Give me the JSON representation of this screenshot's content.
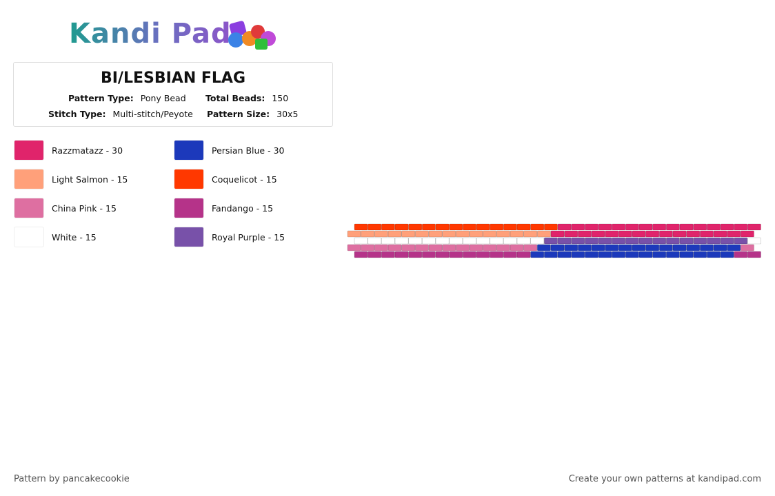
{
  "logo": "Kandi Pad",
  "header": {
    "title": "BI/LESBIAN FLAG",
    "fields": [
      {
        "label": "Pattern Type:",
        "value": "Pony Bead"
      },
      {
        "label": "Total Beads:",
        "value": "150"
      },
      {
        "label": "Stitch Type:",
        "value": "Multi-stitch/Peyote"
      },
      {
        "label": "Pattern Size:",
        "value": "30x5"
      }
    ]
  },
  "legend": [
    {
      "label": "Razzmatazz - 30",
      "color": "#e0246b"
    },
    {
      "label": "Light Salmon - 15",
      "color": "#ffa07a"
    },
    {
      "label": "China Pink - 15",
      "color": "#de6fa1"
    },
    {
      "label": "White - 15",
      "color": "#ffffff"
    },
    {
      "label": "Persian Blue - 30",
      "color": "#1c39bb"
    },
    {
      "label": "Coquelicot - 15",
      "color": "#ff3800"
    },
    {
      "label": "Fandango - 15",
      "color": "#b53389"
    },
    {
      "label": "Royal Purple - 15",
      "color": "#7851a9"
    }
  ],
  "pattern": {
    "rows": [
      [
        {
          "color": 5,
          "count": 15
        },
        {
          "color": 0,
          "count": 15
        }
      ],
      [
        {
          "color": 1,
          "count": 15
        },
        {
          "color": 0,
          "count": 15
        }
      ],
      [
        {
          "color": 3,
          "count": 14
        },
        {
          "color": 7,
          "count": 15
        },
        {
          "color": 3,
          "count": 1
        }
      ],
      [
        {
          "color": 2,
          "count": 14
        },
        {
          "color": 4,
          "count": 15
        },
        {
          "color": 2,
          "count": 1
        }
      ],
      [
        {
          "color": 6,
          "count": 13
        },
        {
          "color": 4,
          "count": 15
        },
        {
          "color": 6,
          "count": 2
        }
      ]
    ]
  },
  "footer": {
    "left": "Pattern by pancakecookie",
    "right": "Create your own patterns at kandipad.com"
  }
}
